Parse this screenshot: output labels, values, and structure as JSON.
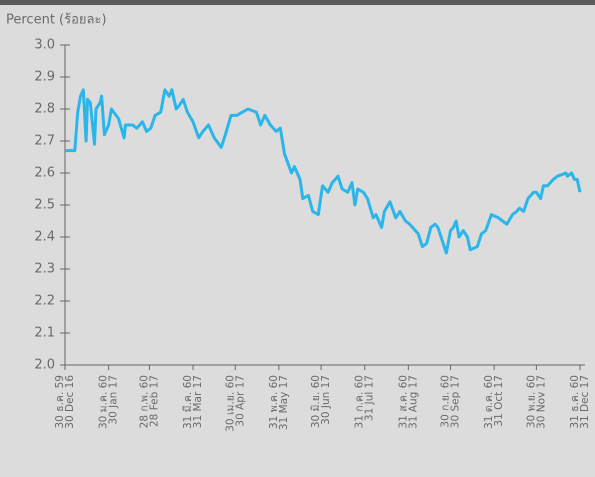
{
  "chart_data": {
    "type": "line",
    "y_label": "Percent (ร้อยละ)",
    "xlim": [
      0,
      366
    ],
    "xticks": [
      {
        "value": 0,
        "label": [
          "30 ธ.ค. 59",
          "30 Dec 16"
        ]
      },
      {
        "value": 31,
        "label": [
          "30 ม.ค. 60",
          "30 Jan 17"
        ]
      },
      {
        "value": 60,
        "label": [
          "28 ก.พ. 60",
          "28 Feb 17"
        ]
      },
      {
        "value": 91,
        "label": [
          "31 มี.ค. 60",
          "31 Mar 17"
        ]
      },
      {
        "value": 121,
        "label": [
          "30 เม.ย. 60",
          "30 Apr 17"
        ]
      },
      {
        "value": 152,
        "label": [
          "31 พ.ค. 60",
          "31 May 17"
        ]
      },
      {
        "value": 182,
        "label": [
          "30 มิ.ย. 60",
          "30 Jun 17"
        ]
      },
      {
        "value": 213,
        "label": [
          "31 ก.ค. 60",
          "31 Jul 17"
        ]
      },
      {
        "value": 244,
        "label": [
          "31 ส.ค. 60",
          "31 Aug 17"
        ]
      },
      {
        "value": 274,
        "label": [
          "30 ก.ย. 60",
          "30 Sep 17"
        ]
      },
      {
        "value": 305,
        "label": [
          "31 ต.ค. 60",
          "31 Oct 17"
        ]
      },
      {
        "value": 335,
        "label": [
          "30 พ.ย. 60",
          "30 Nov 17"
        ]
      },
      {
        "value": 366,
        "label": [
          "31 ธ.ค. 60",
          "31 Dec 17"
        ]
      }
    ],
    "ylim": [
      2.0,
      3.0
    ],
    "yticks": [
      {
        "value": 2.0,
        "label": "2.0"
      },
      2.1,
      2.2,
      2.3,
      2.4,
      2.5,
      2.6,
      2.7,
      2.8,
      2.9,
      {
        "value": 3.0,
        "label": "3.0"
      }
    ],
    "color": "#2bb6ea",
    "x": [
      0,
      7,
      9,
      11,
      13,
      15,
      16,
      18,
      21,
      22,
      25,
      26,
      28,
      31,
      33,
      38,
      42,
      43,
      48,
      51,
      55,
      58,
      61,
      64,
      68,
      71,
      74,
      76,
      79,
      81,
      84,
      87,
      91,
      95,
      98,
      102,
      106,
      111,
      114,
      118,
      122,
      126,
      130,
      136,
      139,
      142,
      146,
      150,
      153,
      156,
      161,
      163,
      167,
      169,
      173,
      176,
      180,
      183,
      187,
      190,
      194,
      197,
      201,
      204,
      206,
      208,
      212,
      215,
      219,
      221,
      225,
      227,
      231,
      235,
      238,
      242,
      245,
      249,
      251,
      254,
      257,
      260,
      263,
      265,
      268,
      271,
      274,
      276,
      278,
      280,
      283,
      286,
      288,
      293,
      296,
      299,
      303,
      308,
      311,
      314,
      318,
      321,
      323,
      326,
      329,
      333,
      335,
      338,
      340,
      343,
      347,
      350,
      356,
      357,
      360,
      362,
      364,
      366
    ],
    "values": [
      2.67,
      2.67,
      2.79,
      2.84,
      2.86,
      2.7,
      2.83,
      2.82,
      2.69,
      2.8,
      2.82,
      2.84,
      2.72,
      2.75,
      2.8,
      2.77,
      2.71,
      2.75,
      2.75,
      2.74,
      2.76,
      2.73,
      2.74,
      2.78,
      2.79,
      2.86,
      2.84,
      2.86,
      2.8,
      2.81,
      2.83,
      2.79,
      2.76,
      2.71,
      2.73,
      2.75,
      2.71,
      2.68,
      2.72,
      2.78,
      2.78,
      2.79,
      2.8,
      2.79,
      2.75,
      2.78,
      2.75,
      2.73,
      2.74,
      2.66,
      2.6,
      2.62,
      2.58,
      2.52,
      2.53,
      2.48,
      2.47,
      2.56,
      2.54,
      2.57,
      2.59,
      2.55,
      2.54,
      2.57,
      2.5,
      2.55,
      2.54,
      2.52,
      2.46,
      2.47,
      2.43,
      2.48,
      2.51,
      2.46,
      2.48,
      2.45,
      2.44,
      2.42,
      2.41,
      2.37,
      2.38,
      2.43,
      2.44,
      2.43,
      2.39,
      2.35,
      2.42,
      2.43,
      2.45,
      2.4,
      2.42,
      2.4,
      2.36,
      2.37,
      2.41,
      2.42,
      2.47,
      2.46,
      2.45,
      2.44,
      2.47,
      2.48,
      2.49,
      2.48,
      2.52,
      2.54,
      2.54,
      2.52,
      2.56,
      2.56,
      2.58,
      2.59,
      2.6,
      2.59,
      2.6,
      2.58,
      2.58,
      2.54
    ]
  }
}
